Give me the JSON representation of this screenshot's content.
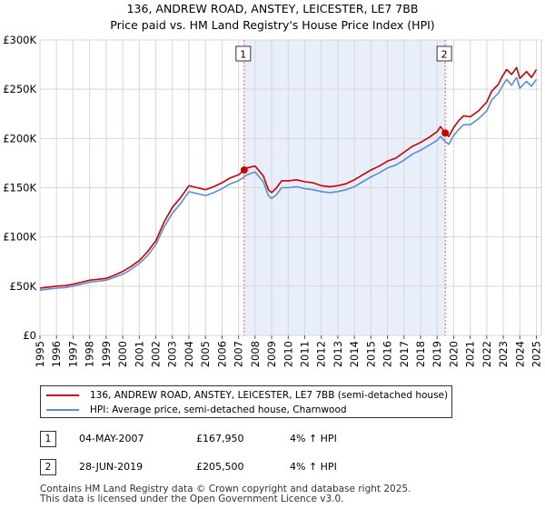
{
  "title_line1": "136, ANDREW ROAD, ANSTEY, LEICESTER, LE7 7BB",
  "title_line2": "Price paid vs. HM Land Registry's House Price Index (HPI)",
  "chart_data": {
    "type": "line",
    "title": "136, ANDREW ROAD, ANSTEY, LEICESTER, LE7 7BB — Price paid vs. HM Land Registry's House Price Index (HPI)",
    "xlabel": "",
    "ylabel": "",
    "xlim": [
      1995.0,
      2025.3
    ],
    "ylim": [
      0,
      300000
    ],
    "y_ticks": [
      0,
      50000,
      100000,
      150000,
      200000,
      250000,
      300000
    ],
    "y_tick_labels": [
      "£0",
      "£50K",
      "£100K",
      "£150K",
      "£200K",
      "£250K",
      "£300K"
    ],
    "x_ticks": [
      1995,
      1996,
      1997,
      1998,
      1999,
      2000,
      2001,
      2002,
      2003,
      2004,
      2005,
      2006,
      2007,
      2008,
      2009,
      2010,
      2011,
      2012,
      2013,
      2014,
      2015,
      2016,
      2017,
      2018,
      2019,
      2020,
      2021,
      2022,
      2023,
      2024,
      2025
    ],
    "grid": true,
    "shaded_period": [
      2007.34,
      2019.49
    ],
    "series": [
      {
        "name": "136, ANDREW ROAD, ANSTEY, LEICESTER, LE7 7BB (semi-detached house)",
        "color": "#cc0000",
        "x": [
          1995.0,
          1995.5,
          1996.0,
          1996.5,
          1997.0,
          1997.5,
          1998.0,
          1998.5,
          1999.0,
          1999.5,
          2000.0,
          2000.5,
          2001.0,
          2001.5,
          2002.0,
          2002.5,
          2003.0,
          2003.5,
          2004.0,
          2004.5,
          2005.0,
          2005.5,
          2006.0,
          2006.5,
          2007.0,
          2007.34,
          2007.5,
          2008.0,
          2008.5,
          2008.8,
          2009.0,
          2009.3,
          2009.6,
          2010.0,
          2010.5,
          2011.0,
          2011.5,
          2012.0,
          2012.5,
          2013.0,
          2013.5,
          2014.0,
          2014.5,
          2015.0,
          2015.5,
          2016.0,
          2016.5,
          2017.0,
          2017.5,
          2018.0,
          2018.5,
          2019.0,
          2019.2,
          2019.49,
          2019.7,
          2020.0,
          2020.3,
          2020.6,
          2021.0,
          2021.5,
          2022.0,
          2022.3,
          2022.7,
          2022.9,
          2023.2,
          2023.5,
          2023.8,
          2024.0,
          2024.4,
          2024.7,
          2025.0
        ],
        "values": [
          48000,
          49000,
          50000,
          50500,
          52000,
          54000,
          56000,
          57000,
          58000,
          61000,
          65000,
          70000,
          76000,
          85000,
          96000,
          115000,
          130000,
          140000,
          152000,
          150000,
          148000,
          151000,
          155000,
          160000,
          163000,
          167950,
          170000,
          172000,
          162000,
          148000,
          145000,
          150000,
          157000,
          157000,
          158000,
          156000,
          155000,
          152000,
          151000,
          152000,
          154000,
          158000,
          163000,
          168000,
          172000,
          177000,
          180000,
          186000,
          192000,
          196000,
          201000,
          207000,
          212000,
          205500,
          202000,
          211000,
          218000,
          223000,
          222000,
          228000,
          237000,
          248000,
          255000,
          262000,
          270000,
          265000,
          272000,
          261000,
          268000,
          262000,
          270000
        ]
      },
      {
        "name": "HPI: Average price, semi-detached house, Charnwood",
        "color": "#5b8fd4",
        "x": [
          1995.0,
          1995.5,
          1996.0,
          1996.5,
          1997.0,
          1997.5,
          1998.0,
          1998.5,
          1999.0,
          1999.5,
          2000.0,
          2000.5,
          2001.0,
          2001.5,
          2002.0,
          2002.5,
          2003.0,
          2003.5,
          2004.0,
          2004.5,
          2005.0,
          2005.5,
          2006.0,
          2006.5,
          2007.0,
          2007.34,
          2007.5,
          2008.0,
          2008.5,
          2008.8,
          2009.0,
          2009.3,
          2009.6,
          2010.0,
          2010.5,
          2011.0,
          2011.5,
          2012.0,
          2012.5,
          2013.0,
          2013.5,
          2014.0,
          2014.5,
          2015.0,
          2015.5,
          2016.0,
          2016.5,
          2017.0,
          2017.5,
          2018.0,
          2018.5,
          2019.0,
          2019.2,
          2019.49,
          2019.7,
          2020.0,
          2020.3,
          2020.6,
          2021.0,
          2021.5,
          2022.0,
          2022.3,
          2022.7,
          2022.9,
          2023.2,
          2023.5,
          2023.8,
          2024.0,
          2024.4,
          2024.7,
          2025.0
        ],
        "values": [
          46000,
          47000,
          48000,
          48500,
          50000,
          52000,
          54000,
          55000,
          56000,
          59000,
          62000,
          67000,
          73000,
          81000,
          92000,
          110000,
          124000,
          134000,
          146000,
          144000,
          142000,
          145000,
          149000,
          154000,
          157000,
          161000,
          163000,
          166000,
          156000,
          142000,
          139000,
          143000,
          150000,
          150000,
          151000,
          149000,
          148000,
          146000,
          145000,
          146000,
          148000,
          151000,
          156000,
          161000,
          165000,
          170000,
          173000,
          178000,
          184000,
          188000,
          193000,
          198000,
          202000,
          197000,
          194000,
          203000,
          209000,
          214000,
          214000,
          220000,
          228000,
          239000,
          246000,
          252000,
          260000,
          254000,
          262000,
          251000,
          258000,
          253000,
          260000
        ]
      }
    ],
    "annotations": [
      {
        "label": "1",
        "x": 2007.34,
        "y": 167950
      },
      {
        "label": "2",
        "x": 2019.49,
        "y": 205500
      }
    ]
  },
  "legend": [
    {
      "label": "136, ANDREW ROAD, ANSTEY, LEICESTER, LE7 7BB (semi-detached house)",
      "color": "#cc0000"
    },
    {
      "label": "HPI: Average price, semi-detached house, Charnwood",
      "color": "#5b8fd4"
    }
  ],
  "sales": [
    {
      "num": "1",
      "date": "04-MAY-2007",
      "price": "£167,950",
      "hpi": "4% ↑ HPI"
    },
    {
      "num": "2",
      "date": "28-JUN-2019",
      "price": "£205,500",
      "hpi": "4% ↑ HPI"
    }
  ],
  "footer_line1": "Contains HM Land Registry data © Crown copyright and database right 2025.",
  "footer_line2": "This data is licensed under the Open Government Licence v3.0."
}
